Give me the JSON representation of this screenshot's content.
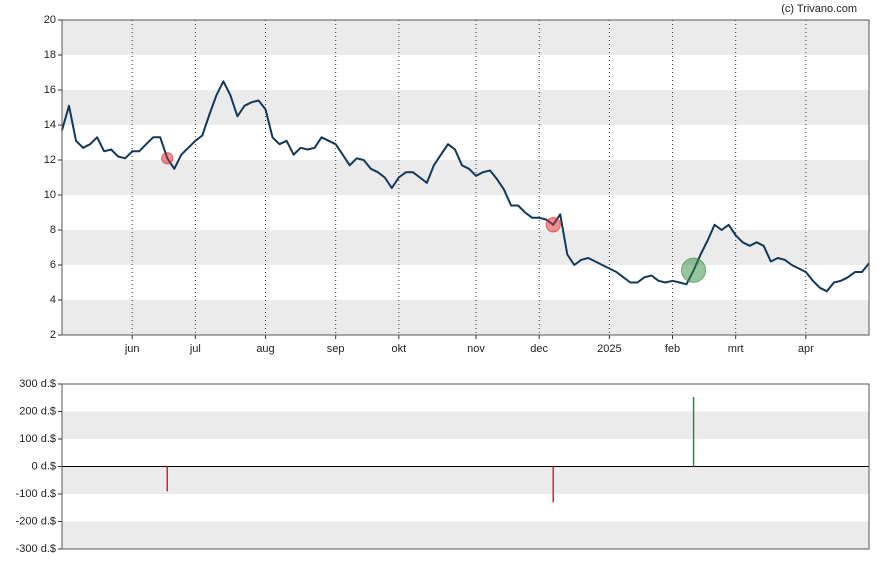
{
  "chart_data": [
    {
      "type": "line",
      "title": "(c) Trivano.com",
      "categories": [
        null,
        null,
        null,
        null,
        null,
        null,
        null,
        null,
        null,
        null,
        "jun",
        null,
        null,
        null,
        null,
        null,
        null,
        null,
        null,
        "jul",
        null,
        null,
        null,
        null,
        null,
        null,
        null,
        null,
        null,
        "aug",
        null,
        null,
        null,
        null,
        null,
        null,
        null,
        null,
        null,
        "sep",
        null,
        null,
        null,
        null,
        null,
        null,
        null,
        null,
        "okt",
        null,
        null,
        null,
        null,
        null,
        null,
        null,
        null,
        null,
        null,
        "nov",
        null,
        null,
        null,
        null,
        null,
        null,
        null,
        null,
        "dec",
        null,
        null,
        null,
        null,
        null,
        null,
        null,
        null,
        null,
        "2025",
        null,
        null,
        null,
        null,
        null,
        null,
        null,
        null,
        "feb",
        null,
        null,
        null,
        null,
        null,
        null,
        null,
        null,
        "mrt",
        null,
        null,
        null,
        null,
        null,
        null,
        null,
        null,
        null,
        "apr",
        null,
        null,
        null,
        null,
        null,
        null,
        null,
        null,
        null
      ],
      "series": [
        {
          "color": "#12385a",
          "values": [
            13.7,
            15.1,
            13.1,
            12.7,
            12.9,
            13.3,
            12.5,
            12.6,
            12.2,
            12.1,
            12.5,
            12.5,
            12.9,
            13.3,
            13.3,
            12.1,
            11.5,
            12.3,
            12.7,
            13.1,
            13.4,
            14.6,
            15.7,
            16.5,
            15.7,
            14.5,
            15.1,
            15.3,
            15.4,
            14.9,
            13.3,
            12.9,
            13.1,
            12.3,
            12.7,
            12.6,
            12.7,
            13.3,
            13.1,
            12.9,
            12.3,
            11.7,
            12.1,
            12.0,
            11.5,
            11.3,
            11.0,
            10.4,
            11.0,
            11.3,
            11.3,
            11.0,
            10.7,
            11.7,
            12.3,
            12.9,
            12.6,
            11.7,
            11.5,
            11.1,
            11.3,
            11.4,
            10.9,
            10.3,
            9.4,
            9.4,
            9.0,
            8.7,
            8.7,
            8.6,
            8.3,
            8.9,
            6.6,
            6.0,
            6.3,
            6.4,
            6.2,
            6.0,
            5.8,
            5.6,
            5.3,
            5.0,
            5.0,
            5.3,
            5.4,
            5.1,
            5.0,
            5.1,
            5.0,
            4.9,
            5.7,
            6.6,
            7.4,
            8.3,
            8.0,
            8.3,
            7.7,
            7.3,
            7.1,
            7.3,
            7.1,
            6.2,
            6.4,
            6.3,
            6.0,
            5.8,
            5.6,
            5.1,
            4.7,
            4.5,
            5.0,
            5.1,
            5.3,
            5.6,
            5.6,
            6.1
          ]
        }
      ],
      "ylim": [
        2,
        20
      ],
      "yticks": [
        2,
        4,
        6,
        8,
        10,
        12,
        14,
        16,
        18,
        20
      ],
      "bands": true,
      "band_color": "#ebebeb",
      "grid_x": true
    },
    {
      "type": "bar",
      "values": [
        null,
        null,
        null,
        null,
        null,
        null,
        null,
        null,
        null,
        null,
        null,
        null,
        null,
        null,
        null,
        -90,
        null,
        null,
        null,
        null,
        null,
        null,
        null,
        null,
        null,
        null,
        null,
        null,
        null,
        null,
        null,
        null,
        null,
        null,
        null,
        null,
        null,
        null,
        null,
        null,
        null,
        null,
        null,
        null,
        null,
        null,
        null,
        null,
        null,
        null,
        null,
        null,
        null,
        null,
        null,
        null,
        null,
        null,
        null,
        null,
        null,
        null,
        null,
        null,
        null,
        null,
        null,
        null,
        null,
        null,
        -130,
        null,
        null,
        null,
        null,
        null,
        null,
        null,
        null,
        null,
        null,
        null,
        null,
        null,
        null,
        null,
        null,
        null,
        null,
        null,
        253,
        null,
        null,
        null,
        null,
        null,
        null,
        null,
        null,
        null,
        null,
        null,
        null,
        null,
        null,
        null,
        null,
        null,
        null,
        null,
        null,
        null,
        null,
        null,
        null,
        null
      ],
      "positive_color": "#2e8b3e",
      "negative_color": "#d62728",
      "ylim": [
        -300,
        300
      ],
      "yticks": [
        {
          "value": 300,
          "label": "300 d.$"
        },
        {
          "value": 200,
          "label": "200 d.$"
        },
        {
          "value": 100,
          "label": "100 d.$"
        },
        {
          "value": 0,
          "label": "0 d.$"
        },
        {
          "value": -100,
          "label": "-100 d.$"
        },
        {
          "value": -200,
          "label": "-200 d.$"
        },
        {
          "value": -300,
          "label": "-300 d.$"
        }
      ],
      "bands": true,
      "band_color": "#ebebeb"
    }
  ]
}
